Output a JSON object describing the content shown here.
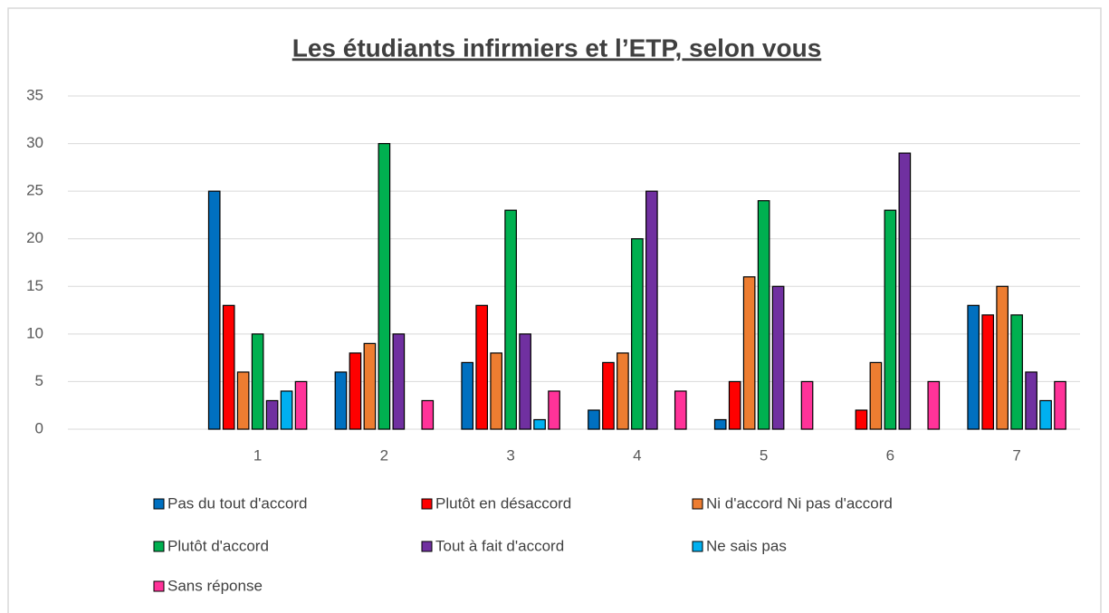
{
  "chart_data": {
    "type": "bar",
    "title": "Les étudiants infirmiers et l’ETP, selon vous",
    "categories": [
      null,
      "1",
      "2",
      "3",
      "4",
      "5",
      "6",
      "7"
    ],
    "series": [
      {
        "name": "Pas du tout d'accord",
        "color": "#0070c0",
        "values": [
          null,
          25,
          6,
          7,
          2,
          1,
          0,
          13
        ]
      },
      {
        "name": "Plutôt en désaccord",
        "color": "#ff0000",
        "values": [
          null,
          13,
          8,
          13,
          7,
          5,
          2,
          12
        ]
      },
      {
        "name": "Ni d'accord Ni pas d'accord",
        "color": "#ed7d31",
        "values": [
          null,
          6,
          9,
          8,
          8,
          16,
          7,
          15
        ]
      },
      {
        "name": "Plutôt d'accord",
        "color": "#00b050",
        "values": [
          null,
          10,
          30,
          23,
          20,
          24,
          23,
          12
        ]
      },
      {
        "name": "Tout à fait d'accord",
        "color": "#7030a0",
        "values": [
          null,
          3,
          10,
          10,
          25,
          15,
          29,
          6
        ]
      },
      {
        "name": "Ne sais pas",
        "color": "#00b0f0",
        "values": [
          null,
          4,
          0,
          1,
          0,
          0,
          0,
          3
        ]
      },
      {
        "name": "Sans réponse",
        "color": "#ff3399",
        "values": [
          null,
          5,
          3,
          4,
          4,
          5,
          5,
          5
        ]
      }
    ],
    "ylim": [
      0,
      35
    ],
    "yticks": [
      0,
      5,
      10,
      15,
      20,
      25,
      30,
      35
    ],
    "grid": true
  }
}
